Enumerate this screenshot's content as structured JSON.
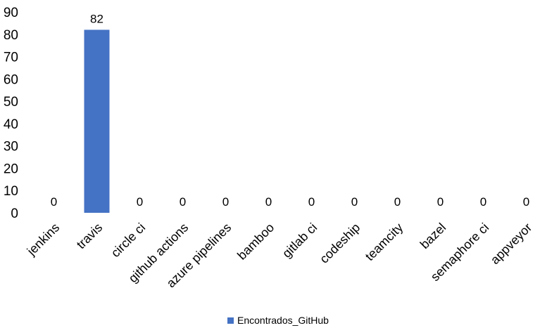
{
  "chart_data": {
    "type": "bar",
    "categories": [
      "jenkins",
      "travis",
      "circle ci",
      "github actions",
      "azure pipelines",
      "bamboo",
      "gitlab ci",
      "codeship",
      "teamcity",
      "bazel",
      "semaphore ci",
      "appveyor"
    ],
    "series": [
      {
        "name": "Encontrados_GitHub",
        "values": [
          0,
          82,
          0,
          0,
          0,
          0,
          0,
          0,
          0,
          0,
          0,
          0
        ],
        "color": "#4472c4"
      }
    ],
    "ylim": [
      0,
      90
    ],
    "yticks": [
      0,
      10,
      20,
      30,
      40,
      50,
      60,
      70,
      80,
      90
    ],
    "grid": false,
    "data_labels": true,
    "legend_position": "bottom"
  }
}
